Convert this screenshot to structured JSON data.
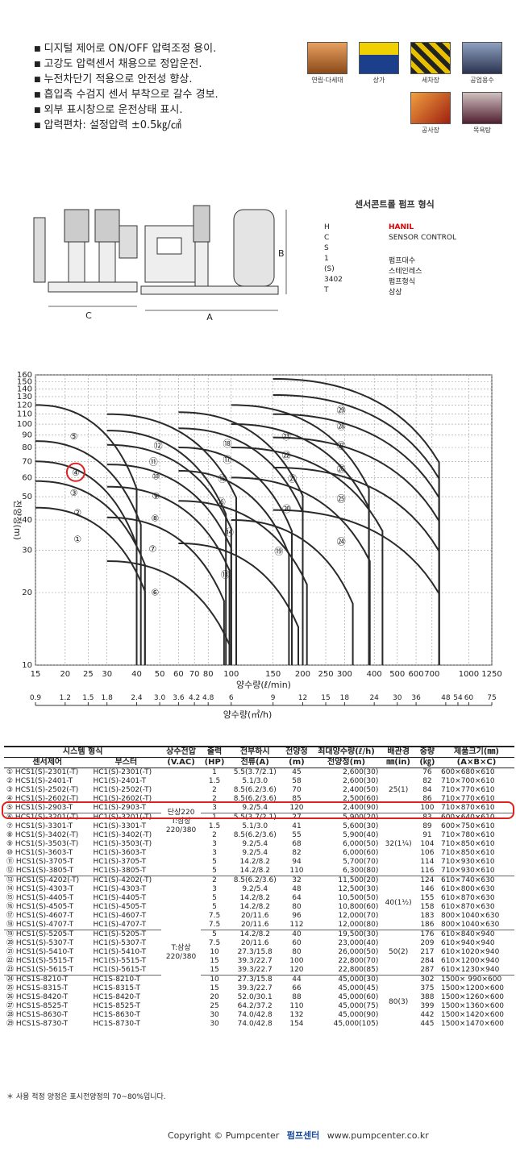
{
  "features": [
    "디지털 제어로 ON/OFF 압력조정 용이.",
    "고강도 압력센서 채용으로 정압운전.",
    "누전차단기 적용으로 안전성 향상.",
    "흡입측 수검지 센서 부착으로 갈수 경보.",
    "외부 표시창으로 운전상태 표시.",
    "압력편차: 설정압력 ±0.5㎏/㎠"
  ],
  "icons": [
    {
      "label": "연립·다세대",
      "name": "apartment-icon",
      "color": "#b5651d"
    },
    {
      "label": "상가",
      "name": "shop-icon",
      "color": "#1c3f8c"
    },
    {
      "label": "세차장",
      "name": "carwash-icon",
      "color": "#c8a000"
    },
    {
      "label": "공업용수",
      "name": "factory-icon",
      "color": "#3a4a6a"
    },
    {
      "label": "공사장",
      "name": "construction-icon",
      "color": "#c04010"
    },
    {
      "label": "목욕탕",
      "name": "bath-icon",
      "color": "#703040"
    }
  ],
  "diagram": {
    "labels": {
      "c": "C",
      "a": "A",
      "b": "B"
    }
  },
  "legend": {
    "title": "센서콘트롤 펌프 형식",
    "rows": [
      {
        "code": "H",
        "desc": "HANIL",
        "red": true
      },
      {
        "code": "C",
        "desc": "SENSOR CONTROL"
      },
      {
        "code": "S",
        "desc": ""
      },
      {
        "code": "1",
        "desc": "펌프대수"
      },
      {
        "code": "(S)",
        "desc": "스테인레스"
      },
      {
        "code": "3402",
        "desc": "펌프형식"
      },
      {
        "code": "T",
        "desc": "삼상"
      }
    ]
  },
  "chart_data": {
    "type": "area",
    "ylabel": "전양정(m)",
    "xlabel1": "양수량(ℓ/min)",
    "xlabel2": "양수량(㎥/h)",
    "y_ticks": [
      10,
      20,
      30,
      40,
      50,
      60,
      70,
      80,
      90,
      100,
      110,
      120,
      130,
      140,
      150,
      160
    ],
    "x_ticks": [
      15,
      20,
      25,
      30,
      40,
      50,
      60,
      70,
      80,
      100,
      150,
      200,
      250,
      300,
      400,
      500,
      600,
      700,
      1000,
      1250
    ],
    "x2_ticks": [
      "0.9",
      "1.2",
      "1.5",
      "1.8",
      "2.4",
      "3.0",
      "3.6",
      "4.2",
      "4.8",
      "6",
      "9",
      "12",
      "15",
      "18",
      "24",
      "30",
      "36",
      "48",
      "54",
      "60",
      "75"
    ],
    "regions": [
      "①",
      "②",
      "③",
      "④",
      "⑤",
      "⑥",
      "⑦",
      "⑧",
      "⑨",
      "⑩",
      "⑪",
      "⑫",
      "⑬",
      "⑭",
      "⑮",
      "⑯",
      "⑰",
      "⑱",
      "⑲",
      "⑳",
      "㉑",
      "㉒",
      "㉓",
      "㉔",
      "㉕",
      "㉖",
      "㉗",
      "㉘",
      "㉙"
    ],
    "highlight": "④"
  },
  "table": {
    "head1": [
      "시스템 형식",
      "상수전압",
      "출력",
      "전부하시",
      "전양정",
      "최대양수량(ℓ/h)",
      "배관경",
      "중량",
      "제품크기(㎜)"
    ],
    "head2": [
      "센서제어",
      "부스터",
      "(V.AC)",
      "(HP)",
      "전류(A)",
      "(m)",
      "전양정(m)",
      "㎜(in)",
      "(㎏)",
      "(A×B×C)"
    ],
    "rows": [
      [
        "① HCS1(S)-2301(-T)",
        "HC1(S)-2301(-T)",
        "1",
        "5.5(3.7/2.1)",
        "45",
        "2,600(30)",
        "76",
        "600×680×610"
      ],
      [
        "② HCS1(S)-2401-T",
        "HC1(S)-2401-T",
        "1.5",
        "5.1/3.0",
        "58",
        "2,600(30)",
        "82",
        "710×700×610"
      ],
      [
        "③ HCS1(S)-2502(-T)",
        "HC1(S)-2502(-T)",
        "2",
        "8.5(6.2/3.6)",
        "70",
        "2,400(50)",
        "84",
        "710×770×610"
      ],
      [
        "④ HCS1(S)-2602(-T)",
        "HC1(S)-2602(-T)",
        "2",
        "8.5(6.2/3.6)",
        "85",
        "2,500(60)",
        "86",
        "710×770×610"
      ],
      [
        "⑤ HCS1(S)-2903-T",
        "HC1(S)-2903-T",
        "3",
        "9.2/5.4",
        "120",
        "2,400(90)",
        "100",
        "710×870×610"
      ],
      [
        "⑥ HCS1(S)-3201(-T)",
        "HC1(S)-3201(-T)",
        "1",
        "5.5(3.7/2.1)",
        "27",
        "5,900(20)",
        "83",
        "600×640×610"
      ],
      [
        "⑦ HCS1(S)-3301-T",
        "HC1(S)-3301-T",
        "1.5",
        "5.1/3.0",
        "41",
        "5,600(30)",
        "89",
        "600×750×610"
      ],
      [
        "⑧ HCS1(S)-3402(-T)",
        "HC1(S)-3402(-T)",
        "2",
        "8.5(6.2/3.6)",
        "55",
        "5,900(40)",
        "91",
        "710×780×610"
      ],
      [
        "⑨ HCS1(S)-3503(-T)",
        "HC1(S)-3503(-T)",
        "3",
        "9.2/5.4",
        "68",
        "6,000(50)",
        "104",
        "710×850×610"
      ],
      [
        "⑩ HCS1(S)-3603-T",
        "HC1(S)-3603-T",
        "3",
        "9.2/5.4",
        "82",
        "6,000(60)",
        "106",
        "710×850×610"
      ],
      [
        "⑪ HCS1(S)-3705-T",
        "HC1(S)-3705-T",
        "5",
        "14.2/8.2",
        "94",
        "5,700(70)",
        "114",
        "710×930×610"
      ],
      [
        "⑫ HCS1(S)-3805-T",
        "HC1(S)-3805-T",
        "5",
        "14.2/8.2",
        "110",
        "6,300(80)",
        "116",
        "710×930×610"
      ],
      [
        "⑬ HCS1(S)-4202(-T)",
        "HC1(S)-4202(-T)",
        "2",
        "8.5(6.2/3.6)",
        "32",
        "11,500(20)",
        "124",
        "610×740×630"
      ],
      [
        "⑭ HCS1(S)-4303-T",
        "HC1(S)-4303-T",
        "3",
        "9.2/5.4",
        "48",
        "12,500(30)",
        "146",
        "610×800×630"
      ],
      [
        "⑮ HCS1(S)-4405-T",
        "HC1(S)-4405-T",
        "5",
        "14.2/8.2",
        "64",
        "10,500(50)",
        "155",
        "610×870×630"
      ],
      [
        "⑯ HCS1(S)-4505-T",
        "HC1(S)-4505-T",
        "5",
        "14.2/8.2",
        "80",
        "10,800(60)",
        "158",
        "610×870×630"
      ],
      [
        "⑰ HCS1(S)-4607-T",
        "HC1(S)-4607-T",
        "7.5",
        "20/11.6",
        "96",
        "12,000(70)",
        "183",
        "800×1040×630"
      ],
      [
        "⑱ HCS1(S)-4707-T",
        "HC1(S)-4707-T",
        "7.5",
        "20/11.6",
        "112",
        "12,000(80)",
        "186",
        "800×1040×630"
      ],
      [
        "⑲ HCS1(S)-5205-T",
        "HC1(S)-5205-T",
        "5",
        "14.2/8.2",
        "40",
        "19,500(30)",
        "176",
        "610×840×940"
      ],
      [
        "⑳ HCS1(S)-5307-T",
        "HC1(S)-5307-T",
        "7.5",
        "20/11.6",
        "60",
        "23,000(40)",
        "209",
        "610×940×940"
      ],
      [
        "㉑ HCS1(S)-5410-T",
        "HC1(S)-5410-T",
        "10",
        "27.3/15.8",
        "80",
        "26,000(50)",
        "217",
        "610×1020×940"
      ],
      [
        "㉒ HCS1(S)-5515-T",
        "HC1(S)-5515-T",
        "15",
        "39.3/22.7",
        "100",
        "22,800(70)",
        "284",
        "610×1200×940"
      ],
      [
        "㉓ HCS1(S)-5615-T",
        "HC1(S)-5615-T",
        "15",
        "39.3/22.7",
        "120",
        "22,800(85)",
        "287",
        "610×1230×940"
      ],
      [
        "㉔ HCS1S-8210-T",
        "HC1S-8210-T",
        "10",
        "27.3/15.8",
        "44",
        "45,000(30)",
        "302",
        "1500× 990×600"
      ],
      [
        "㉕ HCS1S-8315-T",
        "HC1S-8315-T",
        "15",
        "39.3/22.7",
        "66",
        "45,000(45)",
        "375",
        "1500×1200×600"
      ],
      [
        "㉖ HCS1S-8420-T",
        "HC1S-8420-T",
        "20",
        "52.0/30.1",
        "88",
        "45,000(60)",
        "388",
        "1500×1260×600"
      ],
      [
        "㉗ HCS1S-8525-T",
        "HC1S-8525-T",
        "25",
        "64.2/37.2",
        "110",
        "45,000(75)",
        "399",
        "1500×1360×600"
      ],
      [
        "㉘ HCS1S-8630-T",
        "HC1S-8630-T",
        "30",
        "74.0/42.8",
        "132",
        "45,000(90)",
        "442",
        "1500×1420×600"
      ],
      [
        "㉙ HCS1S-8730-T",
        "HC1S-8730-T",
        "30",
        "74.0/42.8",
        "154",
        "45,000(105)",
        "445",
        "1500×1470×600"
      ]
    ],
    "voltage1": [
      "단상220",
      "T:삼상",
      "220/380"
    ],
    "voltage2": [
      "T:삼상",
      "220/380"
    ],
    "pipe": [
      "25(1)",
      "32(1¼)",
      "40(1½)",
      "50(2)",
      "80(3)"
    ]
  },
  "note": "＊ 사용 적정 양정은 표시전양정의 70~80%입니다.",
  "footer": {
    "copyright": "Copyright © Pumpcenter",
    "brand": "펌프센터",
    "url": "www.pumpcenter.co.kr"
  }
}
